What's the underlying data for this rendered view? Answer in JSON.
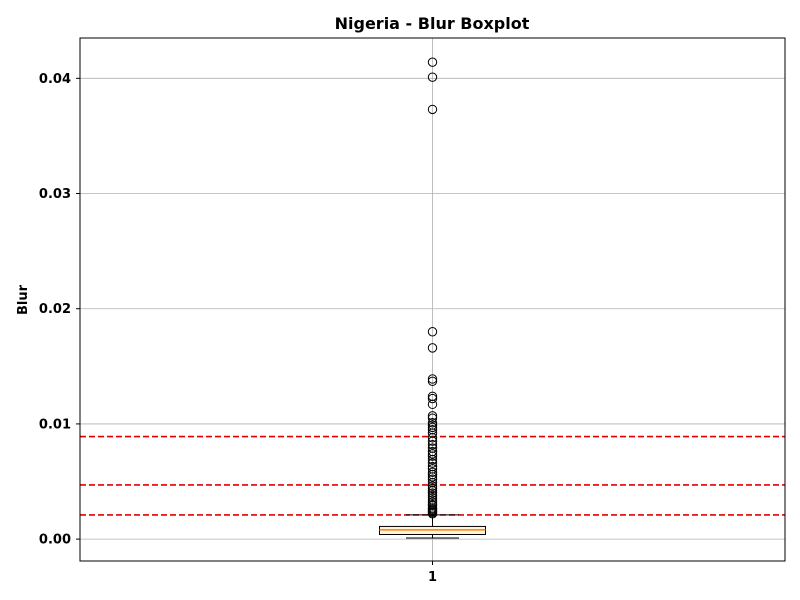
{
  "chart_data": {
    "type": "boxplot",
    "title": "Nigeria - Blur Boxplot",
    "xlabel": "",
    "ylabel": "Blur",
    "categories": [
      "1"
    ],
    "ylim": [
      -0.0019,
      0.0435
    ],
    "y_ticks": [
      0.0,
      0.01,
      0.02,
      0.03,
      0.04
    ],
    "y_tick_labels": [
      "0.00",
      "0.01",
      "0.02",
      "0.03",
      "0.04"
    ],
    "grid": true,
    "box": {
      "whisker_low": 0.0001,
      "q1": 0.0004,
      "median": 0.0008,
      "q3": 0.0011,
      "whisker_high": 0.0021
    },
    "outliers": [
      0.0414,
      0.0401,
      0.0373,
      0.018,
      0.0166,
      0.0139,
      0.0137,
      0.0124,
      0.0122,
      0.0117,
      0.0107,
      0.0105,
      0.0101,
      0.0099,
      0.0097,
      0.0095,
      0.0092,
      0.0088,
      0.0085,
      0.0082,
      0.0079,
      0.0076,
      0.0074,
      0.0072,
      0.0069,
      0.0066,
      0.0063,
      0.0061,
      0.0058,
      0.0056,
      0.0054,
      0.0052,
      0.0049,
      0.0046,
      0.0044,
      0.0042,
      0.004,
      0.0038,
      0.0036,
      0.0034,
      0.0032,
      0.003,
      0.0029,
      0.0027,
      0.0026,
      0.0025,
      0.0024,
      0.0023,
      0.0022
    ],
    "reference_lines": [
      0.0089,
      0.0047,
      0.0021
    ],
    "colors": {
      "box_fill": "#fff3d9",
      "median": "#ff7f0e",
      "reference_line": "#e00000",
      "grid": "#b0b0b0"
    }
  }
}
